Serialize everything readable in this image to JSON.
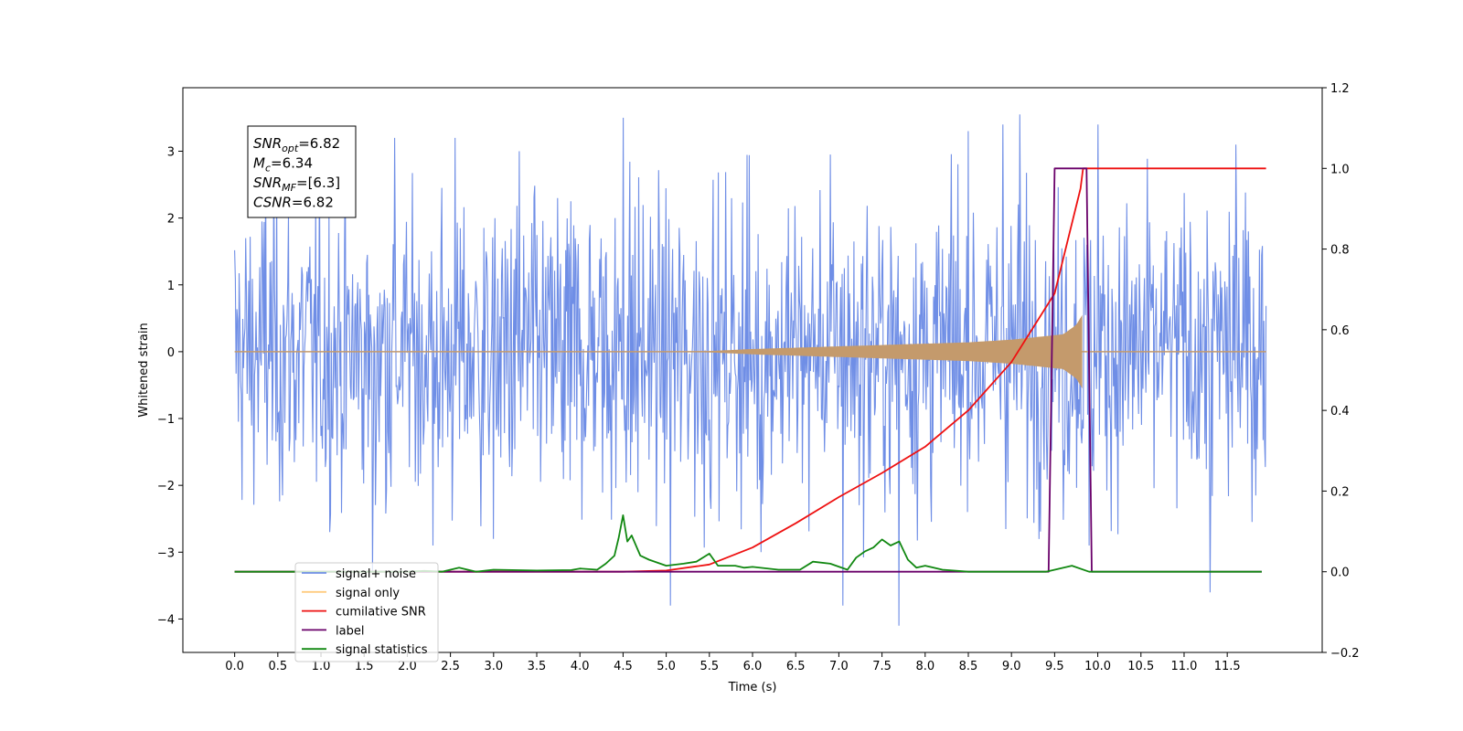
{
  "chart_data": {
    "type": "line",
    "title": "",
    "xlabel": "Time (s)",
    "ylabel": "Whitened strain",
    "xlim": [
      -0.6,
      12.6
    ],
    "ylim": [
      -4.5,
      3.95
    ],
    "y2lim": [
      -0.2,
      1.2
    ],
    "x_ticks": [
      "0.0",
      "0.5",
      "1.0",
      "1.5",
      "2.0",
      "2.5",
      "3.0",
      "3.5",
      "4.0",
      "4.5",
      "5.0",
      "5.5",
      "6.0",
      "6.5",
      "7.0",
      "7.5",
      "8.0",
      "8.5",
      "9.0",
      "9.5",
      "10.0",
      "10.5",
      "11.0",
      "11.5"
    ],
    "y_ticks": [
      "−4",
      "−3",
      "−2",
      "−1",
      "0",
      "1",
      "2",
      "3"
    ],
    "y2_ticks": [
      "−0.2",
      "0.0",
      "0.2",
      "0.4",
      "0.6",
      "0.8",
      "1.0",
      "1.2"
    ],
    "grid": false,
    "legend_position": "lower-left",
    "annotation": {
      "lines": [
        {
          "name": "SNR",
          "sub": "opt",
          "value": "=6.82"
        },
        {
          "name": "M",
          "sub": "c",
          "value": "=6.34"
        },
        {
          "name": "SNR",
          "sub": "MF",
          "value": "=[6.3]"
        },
        {
          "name": "CSNR",
          "sub": "",
          "value": "=6.82"
        }
      ]
    },
    "series": [
      {
        "name": "signal+ noise",
        "color": "#6f8ee6",
        "axis": "left",
        "kind": "noise",
        "envelope": 1.2,
        "spikes": [
          [
            0.36,
            2.75
          ],
          [
            1.85,
            3.2
          ],
          [
            2.3,
            -2.9
          ],
          [
            3.3,
            3.0
          ],
          [
            4.5,
            3.5
          ],
          [
            5.05,
            -3.8
          ],
          [
            6.9,
            2.95
          ],
          [
            7.05,
            -3.8
          ],
          [
            7.7,
            -4.1
          ],
          [
            8.5,
            3.3
          ],
          [
            8.9,
            3.4
          ],
          [
            9.1,
            3.55
          ],
          [
            10.0,
            3.4
          ],
          [
            11.3,
            -3.6
          ],
          [
            11.6,
            3.1
          ],
          [
            1.6,
            -3.3
          ],
          [
            3.0,
            -2.8
          ],
          [
            9.9,
            -2.9
          ],
          [
            2.55,
            3.2
          ],
          [
            6.1,
            -3.0
          ]
        ]
      },
      {
        "name": "signal only",
        "color": "#c49a6c",
        "axis": "left",
        "kind": "chirp",
        "x": [
          0.0,
          5.0,
          5.5,
          6.0,
          6.5,
          7.0,
          7.5,
          8.0,
          8.5,
          9.0,
          9.3,
          9.6,
          9.75,
          9.82
        ],
        "amplitude": [
          0.0,
          0.0,
          0.01,
          0.04,
          0.06,
          0.08,
          0.1,
          0.12,
          0.14,
          0.18,
          0.22,
          0.26,
          0.4,
          0.55
        ]
      },
      {
        "name": "cumilative SNR",
        "color": "#ee1111",
        "axis": "right",
        "x": [
          0.0,
          4.5,
          5.0,
          5.5,
          6.0,
          6.5,
          7.0,
          7.5,
          8.0,
          8.5,
          9.0,
          9.5,
          9.8,
          9.83,
          11.95
        ],
        "values": [
          0.0,
          0.0,
          0.003,
          0.018,
          0.06,
          0.12,
          0.185,
          0.245,
          0.31,
          0.4,
          0.52,
          0.69,
          0.95,
          1.0,
          1.0
        ]
      },
      {
        "name": "label",
        "color": "#6a006a",
        "axis": "right",
        "x": [
          0.0,
          9.43,
          9.5,
          9.87,
          9.93,
          11.9
        ],
        "values": [
          0.0,
          0.0,
          1.0,
          1.0,
          0.0,
          0.0
        ]
      },
      {
        "name": "signal statistics",
        "color": "#118811",
        "axis": "right",
        "x": [
          0.0,
          2.0,
          2.2,
          2.4,
          2.6,
          2.8,
          3.0,
          3.5,
          3.9,
          4.0,
          4.2,
          4.3,
          4.4,
          4.45,
          4.5,
          4.55,
          4.6,
          4.7,
          4.8,
          5.0,
          5.2,
          5.35,
          5.5,
          5.6,
          5.8,
          5.9,
          6.0,
          6.3,
          6.55,
          6.7,
          6.9,
          7.1,
          7.2,
          7.3,
          7.4,
          7.5,
          7.6,
          7.7,
          7.8,
          7.9,
          8.0,
          8.2,
          8.5,
          9.4,
          9.7,
          9.9,
          11.9
        ],
        "values": [
          0.0,
          0.0,
          0.002,
          0.0,
          0.01,
          0.0,
          0.005,
          0.003,
          0.004,
          0.008,
          0.005,
          0.02,
          0.04,
          0.085,
          0.14,
          0.075,
          0.09,
          0.04,
          0.03,
          0.015,
          0.02,
          0.025,
          0.045,
          0.015,
          0.015,
          0.01,
          0.012,
          0.005,
          0.005,
          0.025,
          0.02,
          0.005,
          0.035,
          0.05,
          0.06,
          0.08,
          0.065,
          0.075,
          0.03,
          0.01,
          0.015,
          0.005,
          0.0,
          0.0,
          0.015,
          0.0,
          0.0
        ]
      }
    ],
    "legend": [
      {
        "label": "signal+ noise",
        "color": "#6f8ee6"
      },
      {
        "label": "signal only",
        "color": "#ffcc80"
      },
      {
        "label": "cumilative SNR",
        "color": "#ee1111"
      },
      {
        "label": "label",
        "color": "#6a006a"
      },
      {
        "label": "signal statistics",
        "color": "#118811"
      }
    ]
  }
}
